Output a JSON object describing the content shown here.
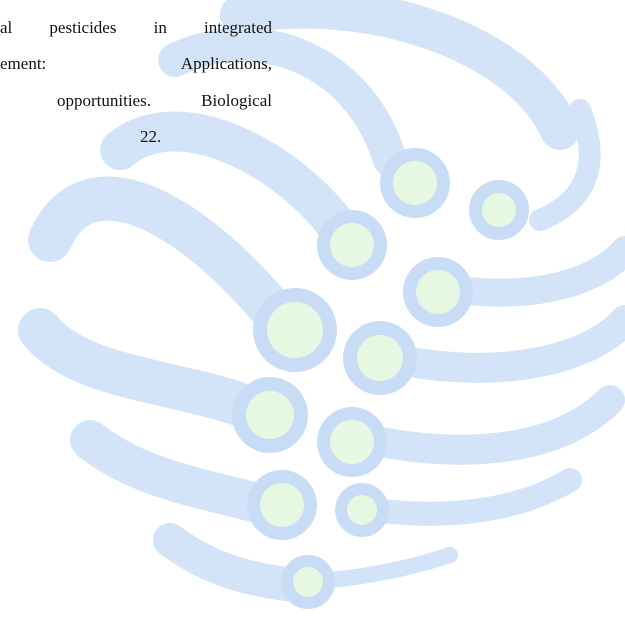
{
  "document": {
    "lines": [
      "al pesticides in integrated",
      "ement: Applications,",
      "opportunities. Biological",
      "22."
    ]
  }
}
